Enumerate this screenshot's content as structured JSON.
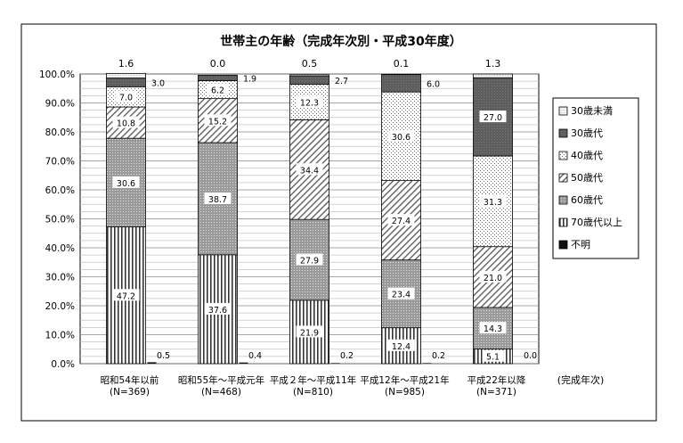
{
  "chart_data": {
    "type": "bar",
    "stacked": true,
    "percent": true,
    "title": "世帯主の年齢（完成年次別・平成30年度）",
    "x_axis_note": "(完成年次)",
    "y_ticks": [
      "0.0%",
      "10.0%",
      "20.0%",
      "30.0%",
      "40.0%",
      "50.0%",
      "60.0%",
      "70.0%",
      "80.0%",
      "90.0%",
      "100.0%"
    ],
    "ylim": [
      0,
      100
    ],
    "categories": [
      {
        "label": "昭和54年以前",
        "n": "(N=369)"
      },
      {
        "label": "昭和55年～平成元年",
        "n": "(N=468)"
      },
      {
        "label": "平成２年～平成11年",
        "n": "(N=810)"
      },
      {
        "label": "平成12年～平成21年",
        "n": "(N=985)"
      },
      {
        "label": "平成22年以降",
        "n": "(N=371)"
      }
    ],
    "series": [
      {
        "name": "70歳代以上",
        "pattern": "vlines",
        "values": [
          47.2,
          37.6,
          21.9,
          12.4,
          5.1
        ],
        "labels": [
          "47.2",
          "37.6",
          "21.9",
          "12.4",
          "5.1"
        ]
      },
      {
        "name": "60歳代",
        "pattern": "grid",
        "values": [
          30.6,
          38.7,
          27.9,
          23.4,
          14.3
        ],
        "labels": [
          "30.6",
          "38.7",
          "27.9",
          "23.4",
          "14.3"
        ]
      },
      {
        "name": "50歳代",
        "pattern": "diag",
        "values": [
          10.8,
          15.2,
          34.4,
          27.4,
          21.0
        ],
        "labels": [
          "10.8",
          "15.2",
          "34.4",
          "27.4",
          "21.0"
        ]
      },
      {
        "name": "40歳代",
        "pattern": "dots",
        "values": [
          7.0,
          6.2,
          12.3,
          30.6,
          31.3
        ],
        "labels": [
          "7.0",
          "6.2",
          "12.3",
          "30.6",
          "31.3"
        ]
      },
      {
        "name": "30歳代",
        "pattern": "dark",
        "values": [
          3.0,
          1.9,
          2.7,
          6.0,
          27.0
        ],
        "labels": [
          "3.0",
          "1.9",
          "2.7",
          "6.0",
          "27.0"
        ]
      },
      {
        "name": "30歳未満",
        "pattern": "light",
        "values": [
          1.6,
          0.0,
          0.5,
          0.1,
          1.3
        ],
        "labels": [
          "1.6",
          "0.0",
          "0.5",
          "0.1",
          "1.3"
        ]
      }
    ],
    "unknown": {
      "name": "不明",
      "values": [
        0.5,
        0.4,
        0.2,
        0.2,
        0.0
      ],
      "labels": [
        "0.5",
        "0.4",
        "0.2",
        "0.2",
        "0.0"
      ]
    },
    "legend": {
      "placement": "right",
      "order": [
        "30歳未満",
        "30歳代",
        "40歳代",
        "50歳代",
        "60歳代",
        "70歳代以上",
        "不明"
      ]
    },
    "grid": true
  }
}
